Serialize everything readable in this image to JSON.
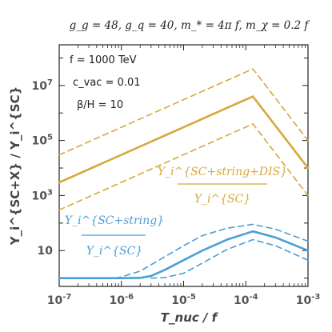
{
  "header": {
    "title": "g_g = 48,  g_q = 40,  m_* = 4π f,  m_χ = 0.2 f"
  },
  "chart_data": {
    "type": "line",
    "title": "g_g = 48,  g_q = 40,  m_* = 4π f,  m_χ = 0.2 f",
    "xlabel": "T_nuc / f",
    "ylabel": "Y_i^{SC+X} / Y_i^{SC}",
    "x_scale": "log",
    "y_scale": "log",
    "xlim": [
      1e-07,
      0.001
    ],
    "ylim": [
      0.5,
      300000000.0
    ],
    "grid": false,
    "x_ticks": [
      {
        "value": 1e-07,
        "base": "10",
        "exp": "-7"
      },
      {
        "value": 1e-06,
        "base": "10",
        "exp": "-6"
      },
      {
        "value": 1e-05,
        "base": "10",
        "exp": "-5"
      },
      {
        "value": 0.0001,
        "base": "10",
        "exp": "-4"
      },
      {
        "value": 0.001,
        "base": "10",
        "exp": "-3"
      }
    ],
    "y_ticks": [
      {
        "value": 10,
        "base": "10",
        "exp": ""
      },
      {
        "value": 1000,
        "base": "10",
        "exp": "3"
      },
      {
        "value": 100000,
        "base": "10",
        "exp": "5"
      },
      {
        "value": 10000000,
        "base": "10",
        "exp": "7"
      }
    ],
    "params": [
      {
        "text": "f = 1000 TeV"
      },
      {
        "text": "c_vac = 0.01"
      },
      {
        "text": "β/H = 10"
      }
    ],
    "colors": {
      "gold": "#d6a83a",
      "blue": "#4a9fd4",
      "axis": "#222222"
    },
    "series": [
      {
        "color": "#d6a83a",
        "style": "solid",
        "x": [
          1e-07,
          0.00013,
          0.001
        ],
        "y": [
          3000,
          4000000,
          10000
        ]
      },
      {
        "color": "#d6a83a",
        "style": "dashed",
        "x": [
          1e-07,
          0.00013,
          0.001
        ],
        "y": [
          30000,
          40000000,
          100000
        ]
      },
      {
        "color": "#d6a83a",
        "style": "dashed",
        "x": [
          1e-07,
          0.00013,
          0.001
        ],
        "y": [
          300,
          400000,
          1000
        ]
      },
      {
        "color": "#4a9fd4",
        "style": "solid",
        "x": [
          1e-07,
          1e-06,
          2e-06,
          3e-06,
          5e-06,
          1e-05,
          2e-05,
          5e-05,
          0.00013,
          0.0003,
          0.001
        ],
        "y": [
          1,
          1,
          1.02,
          1.2,
          2,
          4.5,
          10,
          25,
          50,
          30,
          10
        ]
      },
      {
        "color": "#4a9fd4",
        "style": "dashed",
        "x": [
          8e-07,
          1e-06,
          2e-06,
          5e-06,
          1e-05,
          2e-05,
          5e-05,
          0.00013,
          0.0003,
          0.001
        ],
        "y": [
          1,
          1.1,
          1.8,
          6,
          15,
          35,
          65,
          90,
          60,
          22
        ]
      },
      {
        "color": "#4a9fd4",
        "style": "dashed",
        "x": [
          3e-06,
          5e-06,
          1e-05,
          2e-05,
          5e-05,
          0.00013,
          0.0003,
          0.001
        ],
        "y": [
          1,
          1.05,
          1.5,
          3.5,
          11,
          25,
          15,
          4.5
        ]
      }
    ],
    "annotations": [
      {
        "color": "#d6a83a",
        "numerator": "Y_i^{SC+string+DIS}",
        "denominator": "Y_i^{SC}"
      },
      {
        "color": "#4a9fd4",
        "numerator": "Y_i^{SC+string}",
        "denominator": "Y_i^{SC}"
      }
    ]
  }
}
